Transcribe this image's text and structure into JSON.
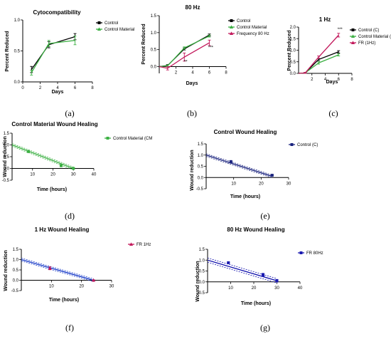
{
  "chart_data": [
    {
      "id": "a",
      "type": "line",
      "caption": "(a)",
      "title": "Cytocompatibility",
      "xlabel": "Days",
      "ylabel": "Percent Reduced",
      "xlim": [
        0,
        8
      ],
      "ylim": [
        0,
        1.0
      ],
      "xticks": [
        "0",
        "2",
        "4",
        "6",
        "8"
      ],
      "yticks": [
        "0.0",
        "0.5",
        "1.0"
      ],
      "series": [
        {
          "name": "Control",
          "color": "#000000",
          "x": [
            1,
            3,
            6
          ],
          "y": [
            0.2,
            0.6,
            0.73
          ],
          "err": [
            0.05,
            0.05,
            0.05
          ],
          "marker": "square"
        },
        {
          "name": "Control Material",
          "color": "#3cb043",
          "x": [
            1,
            3,
            6
          ],
          "y": [
            0.15,
            0.62,
            0.67
          ],
          "err": [
            0.04,
            0.05,
            0.07
          ],
          "marker": "triangle"
        }
      ]
    },
    {
      "id": "b",
      "type": "line",
      "caption": "(b)",
      "title": "80 Hz",
      "xlabel": "Days",
      "ylabel": "Percent Reduced",
      "xlim": [
        0,
        8
      ],
      "ylim": [
        -0.2,
        1.5
      ],
      "xticks": [
        "2",
        "4",
        "6",
        "8"
      ],
      "yticks": [
        "0.0",
        "0.5",
        "1.0",
        "1.5"
      ],
      "series": [
        {
          "name": "Control",
          "color": "#000000",
          "x": [
            0,
            1,
            3,
            6
          ],
          "y": [
            0,
            0.03,
            0.52,
            0.93
          ],
          "err": [
            0,
            0.03,
            0.03,
            0.03
          ],
          "marker": "square"
        },
        {
          "name": "Control Material",
          "color": "#3cb043",
          "x": [
            0,
            1,
            3,
            6
          ],
          "y": [
            0,
            0.02,
            0.55,
            0.9
          ],
          "err": [
            0,
            0.03,
            0.03,
            0.03
          ],
          "marker": "triangle"
        },
        {
          "name": "Frequency 80 Hz",
          "color": "#c2185b",
          "x": [
            0,
            1,
            3,
            6
          ],
          "y": [
            0,
            -0.05,
            0.28,
            0.7
          ],
          "err": [
            0,
            0.05,
            0.12,
            0.08
          ],
          "marker": "triangle"
        }
      ],
      "annotations": [
        {
          "text": "**",
          "x": 3,
          "y": 0.1
        },
        {
          "text": "***",
          "x": 6,
          "y": 0.52
        }
      ]
    },
    {
      "id": "c",
      "type": "line",
      "caption": "(c)",
      "title": "1 Hz",
      "xlabel": "Days",
      "ylabel": "Percent Reduced",
      "xlim": [
        0,
        8
      ],
      "ylim": [
        0,
        2.0
      ],
      "xticks": [
        "2",
        "4",
        "6",
        "8"
      ],
      "yticks": [
        "0.0",
        "0.5",
        "1.0",
        "1.5",
        "2.0"
      ],
      "series": [
        {
          "name": "Control (C)",
          "color": "#000000",
          "x": [
            0,
            1,
            3,
            6
          ],
          "y": [
            0,
            0.02,
            0.6,
            0.93
          ],
          "err": [
            0,
            0.02,
            0.05,
            0.05
          ],
          "marker": "square"
        },
        {
          "name": "Control Material (CM)",
          "color": "#3cb043",
          "x": [
            0,
            1,
            3,
            6
          ],
          "y": [
            0,
            0.02,
            0.45,
            0.8
          ],
          "err": [
            0,
            0.02,
            0.05,
            0.05
          ],
          "marker": "triangle"
        },
        {
          "name": "FR (1Hz)",
          "color": "#c2185b",
          "x": [
            0,
            1,
            3,
            6
          ],
          "y": [
            0,
            0.02,
            0.7,
            1.65
          ],
          "err": [
            0,
            0.02,
            0.05,
            0.08
          ],
          "marker": "triangle"
        }
      ],
      "annotations": [
        {
          "text": "***",
          "x": 6,
          "y": 1.85
        }
      ]
    },
    {
      "id": "d",
      "type": "scatter",
      "caption": "(d)",
      "title": "Control Material Wound Healing",
      "xlabel": "Time (hours)",
      "ylabel": "Wound reduction",
      "xlim": [
        0,
        40
      ],
      "ylim": [
        -0.5,
        1.5
      ],
      "xticks": [
        "10",
        "20",
        "30",
        "40"
      ],
      "yticks": [
        "-0.5",
        "0.0",
        "0.5",
        "1.0",
        "1.5"
      ],
      "series": [
        {
          "name": "Control Material (CM",
          "color": "#3cb043",
          "x": [
            0,
            8,
            24,
            30
          ],
          "y": [
            1.0,
            0.72,
            0.12,
            0.0
          ],
          "err": [
            0,
            0.04,
            0.05,
            0.02
          ],
          "marker": "square"
        }
      ],
      "fit": {
        "x": [
          0,
          30
        ],
        "y": [
          1.0,
          0.0
        ],
        "band": 0.06,
        "color": "#3cb043"
      }
    },
    {
      "id": "e",
      "type": "scatter",
      "caption": "(e)",
      "title": "Control Wound Healing",
      "xlabel": "Time  (hours)",
      "ylabel": "Wound reduction",
      "xlim": [
        0,
        30
      ],
      "ylim": [
        -0.5,
        1.5
      ],
      "xticks": [
        "10",
        "20",
        "30"
      ],
      "yticks": [
        "-0.5",
        "0.0",
        "0.5",
        "1.0",
        "1.5"
      ],
      "series": [
        {
          "name": "Control (C)",
          "color": "#1a237e",
          "x": [
            0,
            9,
            24
          ],
          "y": [
            1.0,
            0.7,
            0.1
          ],
          "err": [
            0,
            0.06,
            0.02
          ],
          "marker": "square"
        }
      ],
      "fit": {
        "x": [
          0,
          24
        ],
        "y": [
          1.0,
          0.05
        ],
        "band": 0.06,
        "color": "#1a237e"
      }
    },
    {
      "id": "f",
      "type": "scatter",
      "caption": "(f)",
      "title": "1 Hz Wound Healing",
      "xlabel": "Time (hours)",
      "ylabel": "Wound reduction",
      "xlim": [
        0,
        30
      ],
      "ylim": [
        -0.5,
        1.5
      ],
      "xticks": [
        "10",
        "20",
        "30"
      ],
      "yticks": [
        "-0.5",
        "0.0",
        "0.5",
        "1.0",
        "1.5"
      ],
      "series": [
        {
          "name": "FR 1Hz",
          "color": "#c2185b",
          "x": [
            0,
            9.5,
            24
          ],
          "y": [
            1.0,
            0.58,
            0.0
          ],
          "err": [
            0,
            0.07,
            0.02
          ],
          "marker": "triangle"
        }
      ],
      "fit": {
        "x": [
          0,
          24
        ],
        "y": [
          1.0,
          0.0
        ],
        "band": 0.07,
        "color": "#1a3cc8"
      }
    },
    {
      "id": "g",
      "type": "scatter",
      "caption": "(g)",
      "title": "80 Hz Wound Healing",
      "xlabel": "Time (hours)",
      "ylabel": "Wound reduction",
      "xlim": [
        0,
        40
      ],
      "ylim": [
        -0.5,
        1.5
      ],
      "xticks": [
        "10",
        "20",
        "30",
        "40"
      ],
      "yticks": [
        "-0.5",
        "0.0",
        "0.5",
        "1.0",
        "1.5"
      ],
      "series": [
        {
          "name": "FR 80Hz",
          "color": "#1a1ab0",
          "x": [
            0,
            9,
            24,
            30
          ],
          "y": [
            1.0,
            0.88,
            0.32,
            0.05
          ],
          "err": [
            0,
            0.03,
            0.07,
            0.06
          ],
          "marker": "square"
        }
      ],
      "fit": {
        "x": [
          0,
          30
        ],
        "y": [
          1.0,
          0.05
        ],
        "band": 0.1,
        "color": "#1a1ab0"
      }
    }
  ]
}
